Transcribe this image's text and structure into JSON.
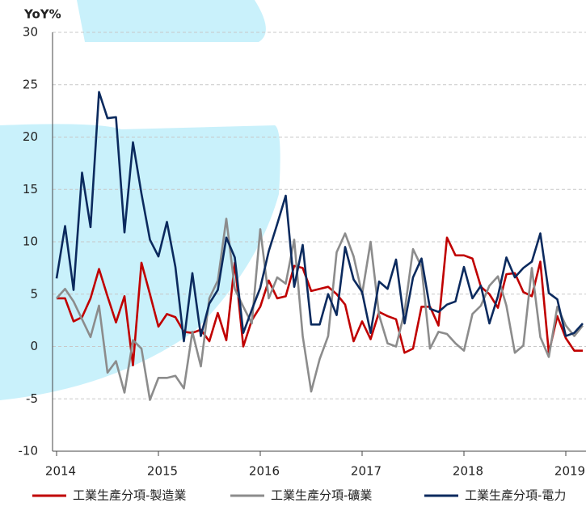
{
  "chart_data": {
    "type": "line",
    "y_label": "YoY%",
    "categories": [
      "2014",
      null,
      null,
      null,
      null,
      null,
      null,
      null,
      null,
      null,
      null,
      null,
      "2015",
      null,
      null,
      null,
      null,
      null,
      null,
      null,
      null,
      null,
      null,
      null,
      "2016",
      null,
      null,
      null,
      null,
      null,
      null,
      null,
      null,
      null,
      null,
      null,
      "2017",
      null,
      null,
      null,
      null,
      null,
      null,
      null,
      null,
      null,
      null,
      null,
      "2018",
      null,
      null,
      null,
      null,
      null,
      null,
      null,
      null,
      null,
      null,
      null,
      "2019",
      null,
      null
    ],
    "series": [
      {
        "name": "工業生產分項-製造業",
        "color": "#c00000",
        "values": [
          4.6,
          4.6,
          2.4,
          2.8,
          4.6,
          7.4,
          4.8,
          2.3,
          4.8,
          -1.8,
          8.0,
          5.0,
          1.9,
          3.1,
          2.8,
          1.4,
          1.3,
          1.6,
          0.5,
          3.2,
          0.6,
          8.0,
          0.0,
          2.5,
          3.8,
          6.3,
          4.6,
          4.8,
          7.7,
          7.5,
          5.3,
          5.5,
          5.7,
          5.0,
          4.0,
          0.5,
          2.4,
          0.7,
          3.3,
          2.9,
          2.6,
          -0.6,
          -0.2,
          3.8,
          3.8,
          2.0,
          10.4,
          8.7,
          8.7,
          8.4,
          5.7,
          5.0,
          3.7,
          6.9,
          7.0,
          5.2,
          4.8,
          8.1,
          -0.6,
          2.9,
          0.8,
          -0.4,
          -0.4
        ]
      },
      {
        "name": "工業生產分項-礦業",
        "color": "#8c8c8c",
        "values": [
          4.6,
          5.5,
          4.3,
          2.6,
          0.9,
          3.9,
          -2.5,
          -1.4,
          -4.4,
          0.6,
          -0.2,
          -5.1,
          -3.0,
          -3.0,
          -2.8,
          -4.0,
          1.4,
          -1.9,
          4.6,
          6.3,
          12.2,
          5.5,
          3.8,
          2.2,
          11.2,
          4.6,
          6.6,
          6.0,
          10.2,
          1.0,
          -4.3,
          -1.2,
          1.0,
          9.0,
          10.8,
          8.6,
          5.0,
          10.0,
          3.0,
          0.3,
          0.0,
          3.3,
          9.3,
          7.6,
          -0.2,
          1.4,
          1.2,
          0.3,
          -0.4,
          3.1,
          3.9,
          5.8,
          6.7,
          3.9,
          -0.6,
          0.1,
          7.5,
          0.9,
          -1.0,
          3.8,
          2.0,
          1.0,
          2.0
        ]
      },
      {
        "name": "工業生產分項-電力",
        "color": "#0b2a5e",
        "values": [
          6.5,
          11.5,
          5.4,
          16.6,
          11.4,
          24.3,
          21.8,
          21.9,
          10.9,
          19.5,
          14.6,
          10.2,
          8.6,
          11.9,
          7.6,
          0.5,
          7.0,
          1.0,
          4.1,
          5.4,
          10.4,
          8.5,
          1.3,
          3.5,
          5.6,
          9.1,
          11.7,
          14.4,
          5.7,
          9.7,
          2.1,
          2.1,
          5.0,
          3.0,
          9.5,
          6.4,
          5.2,
          1.3,
          6.2,
          5.5,
          8.3,
          2.2,
          6.6,
          8.4,
          3.6,
          3.3,
          4.0,
          4.3,
          7.6,
          4.6,
          5.8,
          2.2,
          4.8,
          8.5,
          6.6,
          7.5,
          8.1,
          10.8,
          5.1,
          4.5,
          1.0,
          1.3,
          2.2
        ]
      }
    ],
    "ylim": [
      -10,
      30
    ],
    "yticks": [
      -10,
      -5,
      0,
      5,
      10,
      15,
      20,
      25,
      30
    ],
    "grid": true
  }
}
